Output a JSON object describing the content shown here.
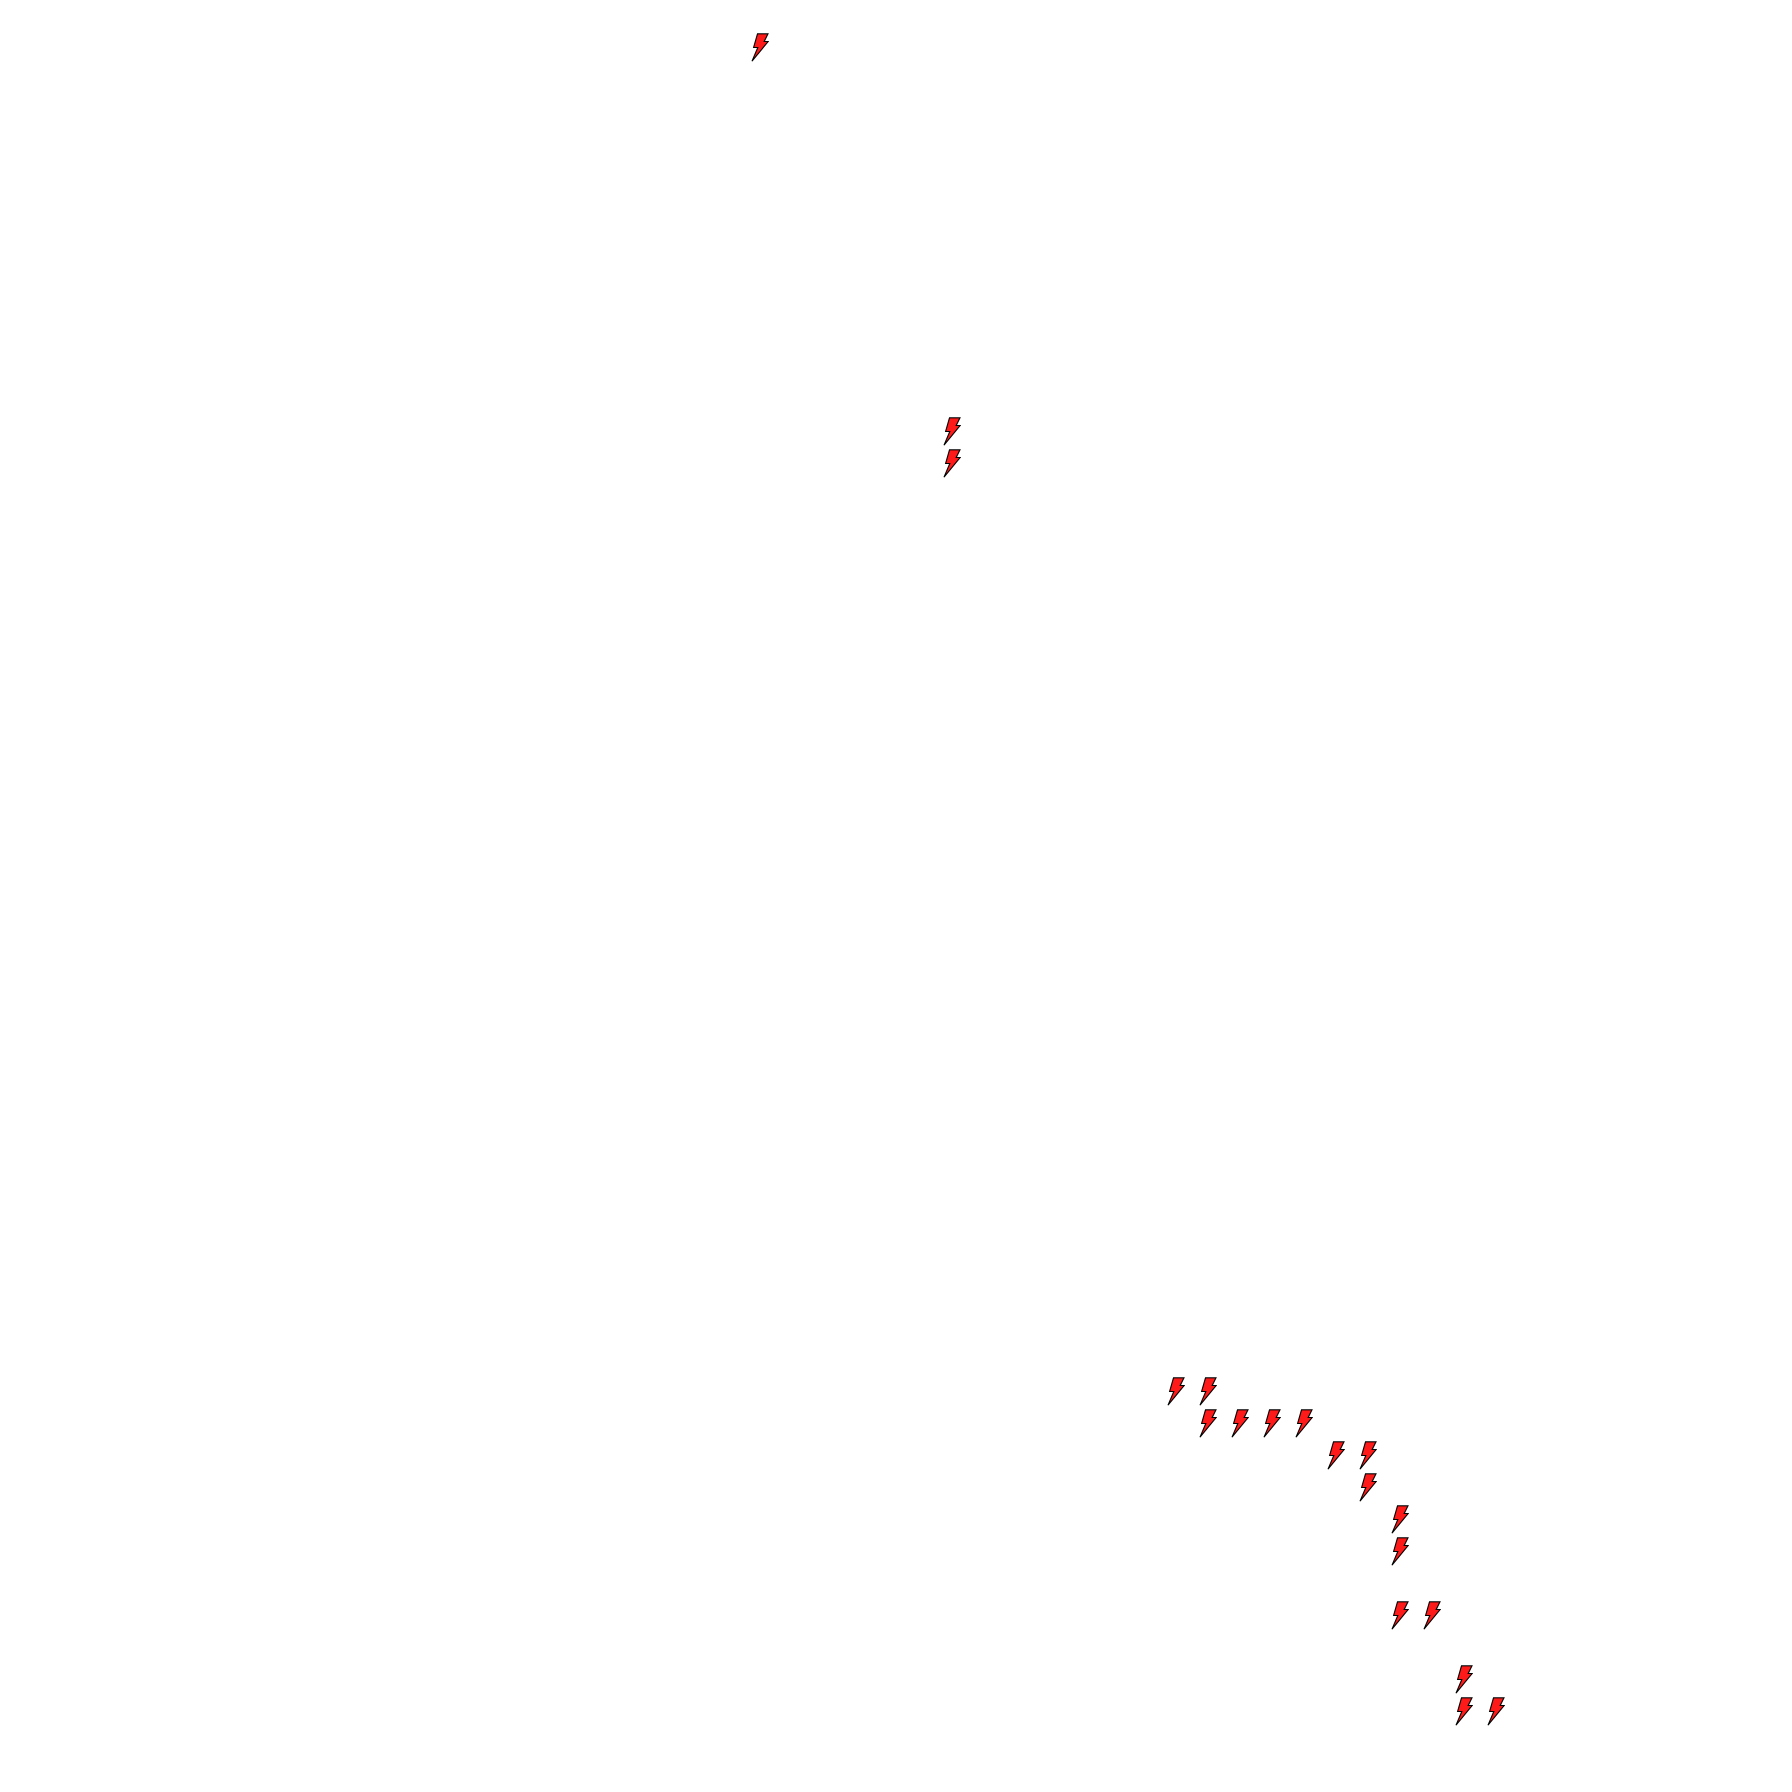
{
  "board": {
    "background": "#ffffff",
    "icon": {
      "name": "lightning-bolt-icon",
      "fill": "#ff1a1a",
      "stroke": "#000000"
    },
    "count": 19
  }
}
